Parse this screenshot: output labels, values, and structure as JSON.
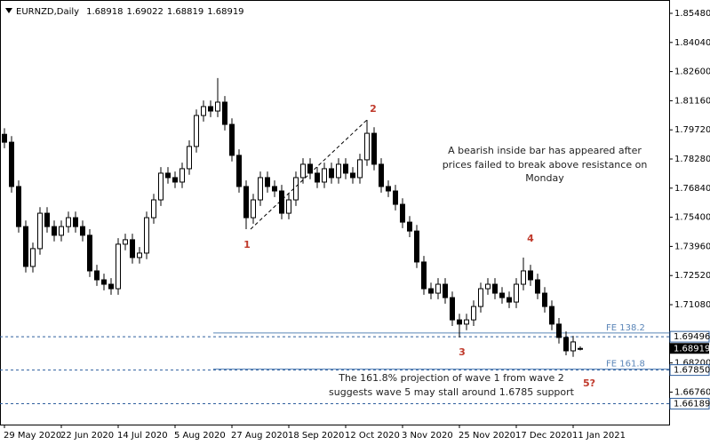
{
  "chart_data": {
    "type": "candlestick",
    "title": "EURNZD,Daily",
    "categories": [
      "29 May 2020",
      null,
      null,
      null,
      null,
      null,
      null,
      null,
      "22 Jun 2020",
      null,
      null,
      null,
      null,
      null,
      null,
      null,
      "14 Jul 2020",
      null,
      null,
      null,
      null,
      null,
      null,
      null,
      "5 Aug 2020",
      null,
      null,
      null,
      null,
      null,
      null,
      null,
      "27 Aug 2020",
      null,
      null,
      null,
      null,
      null,
      null,
      null,
      "18 Sep 2020",
      null,
      null,
      null,
      null,
      null,
      null,
      null,
      "12 Oct 2020",
      null,
      null,
      null,
      null,
      null,
      null,
      null,
      "3 Nov 2020",
      null,
      null,
      null,
      null,
      null,
      null,
      null,
      "25 Nov 2020",
      null,
      null,
      null,
      null,
      null,
      null,
      null,
      "17 Dec 2020",
      null,
      null,
      null,
      null,
      null,
      null,
      null,
      "11 Jan 2021",
      null
    ],
    "open": [
      1.795,
      1.7911,
      1.7692,
      1.7494,
      1.7297,
      1.7385,
      1.756,
      1.7494,
      1.7451,
      1.7494,
      1.7538,
      1.7494,
      1.7451,
      1.7275,
      1.7231,
      1.7209,
      1.7187,
      1.7407,
      1.7429,
      1.7341,
      1.7363,
      1.7538,
      1.7626,
      1.7758,
      1.7736,
      1.7714,
      1.778,
      1.789,
      1.8043,
      1.8087,
      1.8065,
      1.8109,
      1.7999,
      1.7846,
      1.7692,
      1.7538,
      1.7626,
      1.7736,
      1.7692,
      1.767,
      1.756,
      1.7626,
      1.7736,
      1.7802,
      1.7758,
      1.7714,
      1.778,
      1.7736,
      1.7802,
      1.7758,
      1.7736,
      1.7824,
      1.7955,
      1.7802,
      1.7692,
      1.767,
      1.7604,
      1.7516,
      1.7472,
      1.7319,
      1.7187,
      1.7165,
      1.7209,
      1.7143,
      1.7033,
      1.7012,
      1.7033,
      1.7099,
      1.7187,
      1.7209,
      1.7165,
      1.7143,
      1.7121,
      1.7209,
      1.7275,
      1.7231,
      1.7165,
      1.7099,
      1.7012,
      1.6946,
      1.688,
      1.68918
    ],
    "high": [
      1.798,
      1.7941,
      1.7722,
      1.7524,
      1.7415,
      1.759,
      1.759,
      1.7524,
      1.7524,
      1.7568,
      1.7568,
      1.7524,
      1.7481,
      1.7305,
      1.7261,
      1.7239,
      1.7437,
      1.7459,
      1.7459,
      1.7393,
      1.7568,
      1.7656,
      1.7788,
      1.7788,
      1.7766,
      1.781,
      1.792,
      1.8073,
      1.8117,
      1.8117,
      1.8228,
      1.8139,
      1.8029,
      1.7876,
      1.7722,
      1.7656,
      1.7766,
      1.7766,
      1.7722,
      1.77,
      1.7656,
      1.7766,
      1.7832,
      1.7832,
      1.7788,
      1.781,
      1.781,
      1.7832,
      1.7832,
      1.7788,
      1.7854,
      1.8021,
      1.7985,
      1.7832,
      1.7722,
      1.77,
      1.7634,
      1.7546,
      1.7502,
      1.7349,
      1.7217,
      1.7239,
      1.7239,
      1.7173,
      1.7063,
      1.7063,
      1.7129,
      1.7217,
      1.7239,
      1.7239,
      1.7195,
      1.7173,
      1.7239,
      1.7341,
      1.7305,
      1.7261,
      1.7195,
      1.7129,
      1.7042,
      1.6976,
      1.6954,
      1.69022
    ],
    "low": [
      1.7881,
      1.7662,
      1.7464,
      1.7267,
      1.7267,
      1.7355,
      1.7464,
      1.7421,
      1.7421,
      1.7464,
      1.7464,
      1.7421,
      1.7245,
      1.7201,
      1.7179,
      1.7157,
      1.7157,
      1.7377,
      1.7311,
      1.7311,
      1.7333,
      1.7508,
      1.7596,
      1.7706,
      1.7684,
      1.7684,
      1.775,
      1.786,
      1.8013,
      1.8035,
      1.8035,
      1.7969,
      1.7816,
      1.7662,
      1.7481,
      1.7508,
      1.7596,
      1.7662,
      1.764,
      1.753,
      1.753,
      1.7596,
      1.7706,
      1.7728,
      1.7684,
      1.7684,
      1.7706,
      1.7706,
      1.7728,
      1.7706,
      1.7706,
      1.7794,
      1.7772,
      1.7662,
      1.764,
      1.7574,
      1.7486,
      1.7442,
      1.7289,
      1.7157,
      1.7135,
      1.7135,
      1.7113,
      1.7003,
      1.6946,
      1.6982,
      1.7003,
      1.7069,
      1.7157,
      1.7135,
      1.7113,
      1.7091,
      1.7091,
      1.7179,
      1.7201,
      1.7135,
      1.7069,
      1.6982,
      1.6916,
      1.6858,
      1.685,
      1.68819
    ],
    "close": [
      1.7911,
      1.7692,
      1.7494,
      1.7297,
      1.7385,
      1.756,
      1.7494,
      1.7451,
      1.7494,
      1.7538,
      1.7494,
      1.7451,
      1.7275,
      1.7231,
      1.7209,
      1.7187,
      1.7407,
      1.7429,
      1.7341,
      1.7363,
      1.7538,
      1.7626,
      1.7758,
      1.7736,
      1.7714,
      1.778,
      1.789,
      1.8043,
      1.8087,
      1.8065,
      1.8109,
      1.7999,
      1.7846,
      1.7692,
      1.7538,
      1.7626,
      1.7736,
      1.7692,
      1.767,
      1.756,
      1.7626,
      1.7736,
      1.7802,
      1.7758,
      1.7714,
      1.778,
      1.7736,
      1.7802,
      1.7758,
      1.7736,
      1.7824,
      1.7955,
      1.7802,
      1.7692,
      1.767,
      1.7604,
      1.7516,
      1.7472,
      1.7319,
      1.7187,
      1.7165,
      1.7209,
      1.7143,
      1.7033,
      1.7012,
      1.7033,
      1.7099,
      1.7187,
      1.7209,
      1.7165,
      1.7143,
      1.7121,
      1.7209,
      1.7275,
      1.7231,
      1.7165,
      1.7099,
      1.7012,
      1.6946,
      1.688,
      1.6924,
      1.68919
    ],
    "ylim": [
      1.65155,
      1.86138
    ],
    "yticks": [
      {
        "value": 1.8548,
        "label": "1.85480"
      },
      {
        "value": 1.8404,
        "label": "1.84040"
      },
      {
        "value": 1.826,
        "label": "1.82600"
      },
      {
        "value": 1.8116,
        "label": "1.81160"
      },
      {
        "value": 1.7972,
        "label": "1.79720"
      },
      {
        "value": 1.7828,
        "label": "1.78280"
      },
      {
        "value": 1.7684,
        "label": "1.76840"
      },
      {
        "value": 1.754,
        "label": "1.75400"
      },
      {
        "value": 1.7396,
        "label": "1.73960"
      },
      {
        "value": 1.7252,
        "label": "1.72520"
      },
      {
        "value": 1.7108,
        "label": "1.71080"
      },
      {
        "value": 1.682,
        "label": "1.68200"
      },
      {
        "value": 1.6676,
        "label": "1.66760"
      }
    ],
    "levels": [
      {
        "value": 1.69496,
        "label": "1.69496"
      },
      {
        "value": 1.6785,
        "label": "1.67850"
      },
      {
        "value": 1.66189,
        "label": "1.66189"
      }
    ],
    "fe_levels": [
      {
        "value": 1.6968,
        "label": "FE 138.2"
      },
      {
        "value": 1.679,
        "label": "FE 161.8"
      }
    ],
    "wave_labels": [
      "1",
      "2",
      "3",
      "4",
      "5?"
    ],
    "notes": [
      [
        "A bearish inside bar has appeared after",
        "prices failed to break above resistance on",
        "Monday"
      ],
      [
        "The 161.8% projection of wave 1 from wave 2",
        "suggests wave 5 may stall around 1.6785 support"
      ]
    ],
    "up_color": "#ffffff",
    "down_color": "#000000",
    "line_color": "#000000",
    "level_color": "#2f5f9e",
    "fe_color": "#5b86b8"
  }
}
